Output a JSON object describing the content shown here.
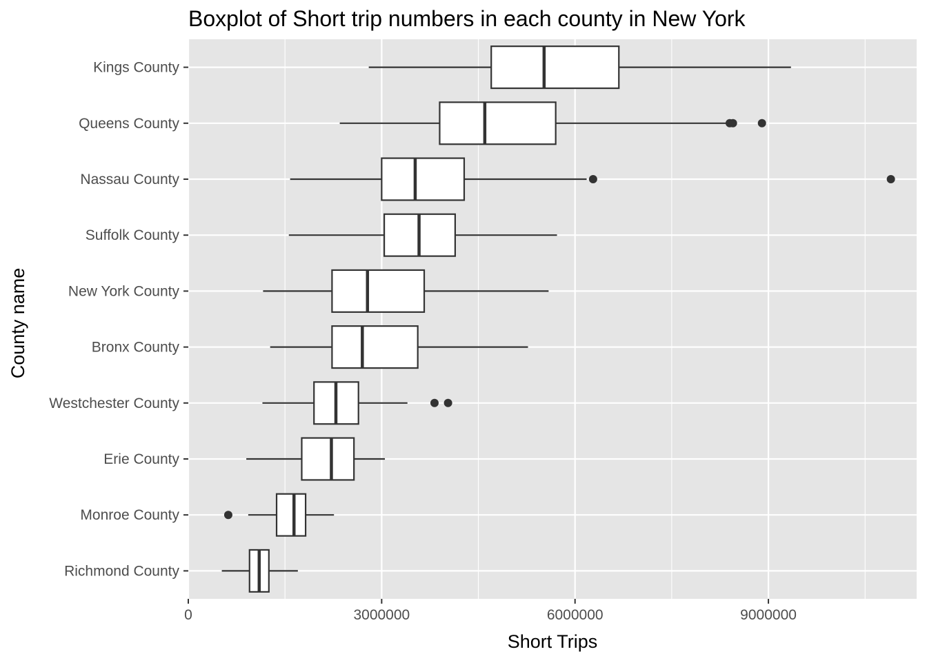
{
  "chart_data": {
    "type": "boxplot",
    "orientation": "horizontal",
    "title": "Boxplot of Short trip numbers in each county in New York",
    "xlabel": "Short Trips",
    "ylabel": "County name",
    "xlim": [
      0,
      11300000
    ],
    "x_ticks": [
      0,
      3000000,
      6000000,
      9000000
    ],
    "x_tick_labels": [
      "0",
      "3000000",
      "6000000",
      "9000000"
    ],
    "x_minor_ticks": [
      1500000,
      4500000,
      7500000,
      10500000
    ],
    "grid": true,
    "colors": {
      "panel_background": "#e5e5e5",
      "grid_line": "#ffffff",
      "box_fill": "#ffffff",
      "box_line": "#333333",
      "outlier": "#333333"
    },
    "series": [
      {
        "category": "Kings County",
        "whisker_low": 2800000,
        "q1": 4700000,
        "median": 5520000,
        "q3": 6680000,
        "whisker_high": 9350000,
        "outliers": []
      },
      {
        "category": "Queens County",
        "whisker_low": 2350000,
        "q1": 3900000,
        "median": 4600000,
        "q3": 5700000,
        "whisker_high": 8350000,
        "outliers": [
          8400000,
          8450000,
          8900000
        ]
      },
      {
        "category": "Nassau County",
        "whisker_low": 1580000,
        "q1": 3000000,
        "median": 3520000,
        "q3": 4280000,
        "whisker_high": 6180000,
        "outliers": [
          6280000,
          10900000
        ]
      },
      {
        "category": "Suffolk County",
        "whisker_low": 1560000,
        "q1": 3040000,
        "median": 3580000,
        "q3": 4140000,
        "whisker_high": 5720000,
        "outliers": []
      },
      {
        "category": "New York County",
        "whisker_low": 1160000,
        "q1": 2230000,
        "median": 2780000,
        "q3": 3660000,
        "whisker_high": 5590000,
        "outliers": []
      },
      {
        "category": "Bronx County",
        "whisker_low": 1270000,
        "q1": 2230000,
        "median": 2700000,
        "q3": 3560000,
        "whisker_high": 5270000,
        "outliers": []
      },
      {
        "category": "Westchester County",
        "whisker_low": 1150000,
        "q1": 1950000,
        "median": 2290000,
        "q3": 2640000,
        "whisker_high": 3400000,
        "outliers": [
          3820000,
          4030000
        ]
      },
      {
        "category": "Erie County",
        "whisker_low": 900000,
        "q1": 1760000,
        "median": 2220000,
        "q3": 2570000,
        "whisker_high": 3050000,
        "outliers": []
      },
      {
        "category": "Monroe County",
        "whisker_low": 930000,
        "q1": 1370000,
        "median": 1640000,
        "q3": 1820000,
        "whisker_high": 2260000,
        "outliers": [
          620000
        ]
      },
      {
        "category": "Richmond County",
        "whisker_low": 520000,
        "q1": 950000,
        "median": 1100000,
        "q3": 1250000,
        "whisker_high": 1700000,
        "outliers": []
      }
    ]
  }
}
